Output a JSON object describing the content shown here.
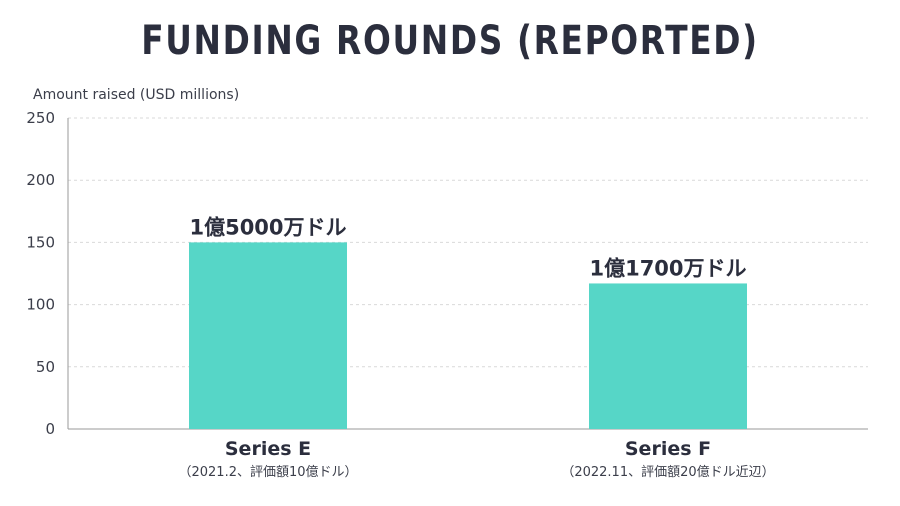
{
  "chart_data": {
    "type": "bar",
    "title": "FUNDING ROUNDS (REPORTED)",
    "ylabel": "Amount raised (USD millions)",
    "xlabel": "",
    "ylim": [
      0,
      250
    ],
    "yticks": [
      0,
      50,
      100,
      150,
      200,
      250
    ],
    "grid": true,
    "categories": [
      {
        "label": "Series E",
        "sublabel": "（2021.2、評価額10億ドル）"
      },
      {
        "label": "Series F",
        "sublabel": "（2022.11、評価額20億ドル近辺）"
      }
    ],
    "values": [
      150,
      117
    ],
    "data_labels": [
      "1億5000万ドル",
      "1億1700万ドル"
    ],
    "colors": {
      "bar": "#56d6c7",
      "text": "#2b2e3d",
      "grid": "#d9d9d9",
      "axis": "#9a9a9a"
    }
  }
}
